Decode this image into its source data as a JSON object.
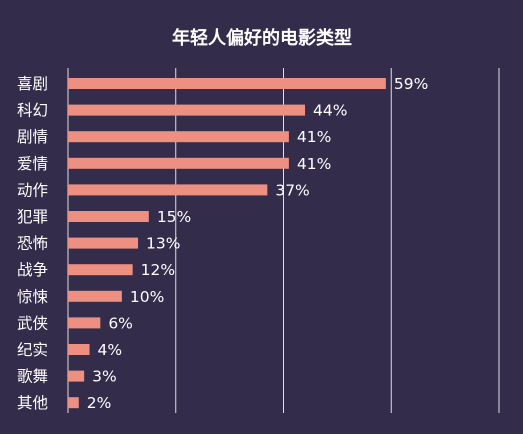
{
  "chart_data": {
    "type": "bar",
    "orientation": "horizontal",
    "title": "年轻人偏好的电影类型",
    "categories": [
      "喜剧",
      "科幻",
      "剧情",
      "爱情",
      "动作",
      "犯罪",
      "恐怖",
      "战争",
      "惊悚",
      "武侠",
      "纪实",
      "歌舞",
      "其他"
    ],
    "values": [
      59,
      44,
      41,
      41,
      37,
      15,
      13,
      12,
      10,
      6,
      4,
      3,
      2
    ],
    "value_labels": [
      "59%",
      "44%",
      "41%",
      "41%",
      "37%",
      "15%",
      "13%",
      "12%",
      "10%",
      "6%",
      "4%",
      "3%",
      "2%"
    ],
    "xlim": [
      0,
      80
    ],
    "x_gridlines": [
      0,
      20,
      40,
      60,
      80
    ],
    "grid": true,
    "colors": {
      "background": "#332c4a",
      "bar": "#ee9081",
      "text": "#ffffff",
      "grid": "#ffffff"
    }
  }
}
